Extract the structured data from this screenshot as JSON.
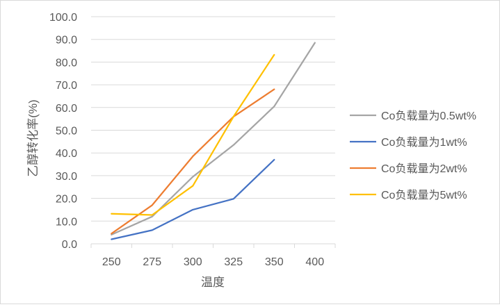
{
  "chart_data": {
    "type": "line",
    "title": "",
    "xlabel": "温度",
    "ylabel": "乙醇转化率(%)",
    "categories": [
      "250",
      "275",
      "300",
      "325",
      "350",
      "400"
    ],
    "ylim": [
      0,
      100
    ],
    "ytick_step": 10,
    "ytick_labels": [
      "0.0",
      "10.0",
      "20.0",
      "30.0",
      "40.0",
      "50.0",
      "60.0",
      "70.0",
      "80.0",
      "90.0",
      "100.0"
    ],
    "grid": "horizontal",
    "legend_position": "right",
    "series": [
      {
        "name": "Co负载量为0.5wt%",
        "color": "#a5a5a5",
        "values": [
          4.0,
          12.0,
          29.5,
          43.5,
          60.5,
          88.5
        ]
      },
      {
        "name": "Co负载量为1wt%",
        "color": "#4472c4",
        "values": [
          2.0,
          6.0,
          15.0,
          19.8,
          37.0,
          null
        ]
      },
      {
        "name": "Co负载量为2wt%",
        "color": "#ed7d31",
        "values": [
          4.5,
          17.0,
          38.5,
          56.0,
          68.0,
          null
        ]
      },
      {
        "name": "Co负载量为5wt%",
        "color": "#ffc000",
        "values": [
          13.2,
          12.7,
          25.5,
          56.0,
          83.2,
          null
        ]
      }
    ]
  }
}
